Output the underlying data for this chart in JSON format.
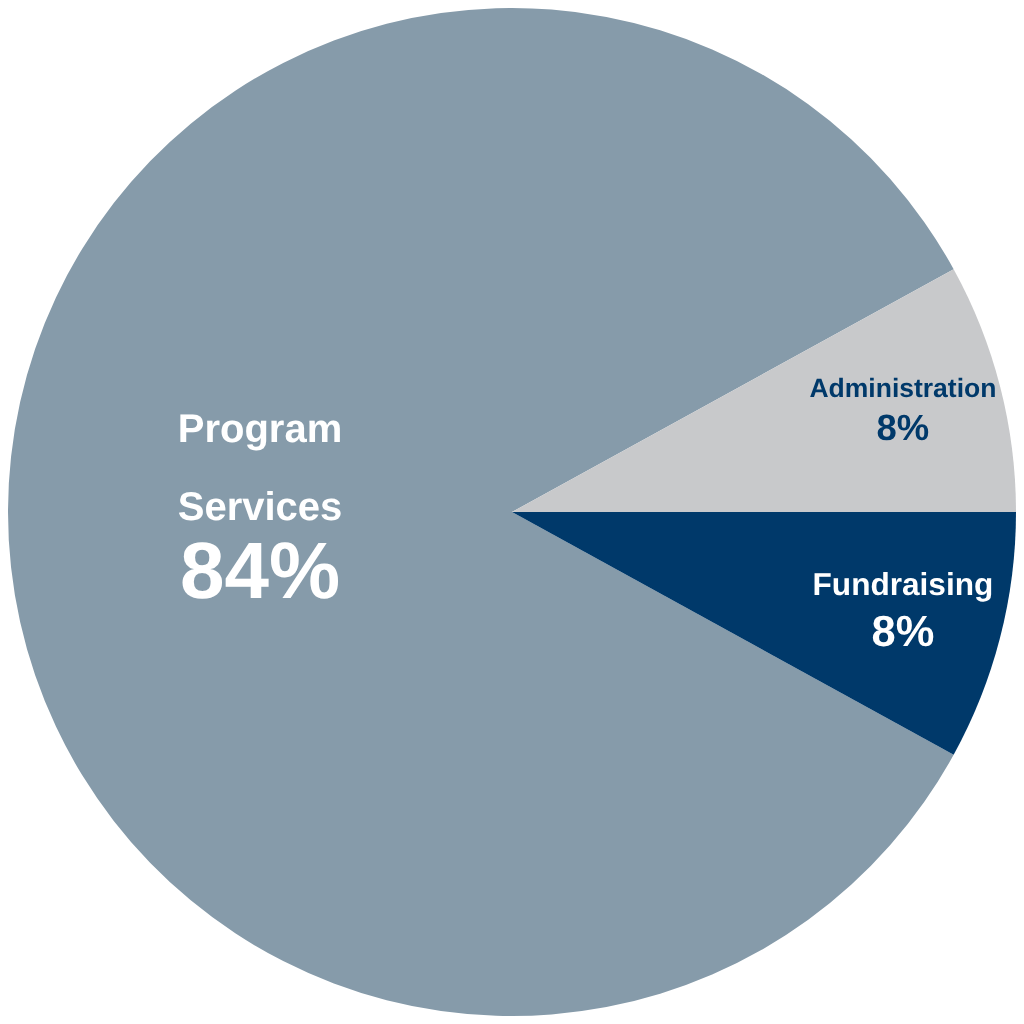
{
  "chart_data": {
    "type": "pie",
    "categories": [
      "Program Services",
      "Administration",
      "Fundraising"
    ],
    "values": [
      84,
      8,
      8
    ],
    "colors": [
      "#869baa",
      "#c8c9cb",
      "#00396a"
    ],
    "value_labels": [
      "84%",
      "8%",
      "8%"
    ],
    "legend": false
  }
}
